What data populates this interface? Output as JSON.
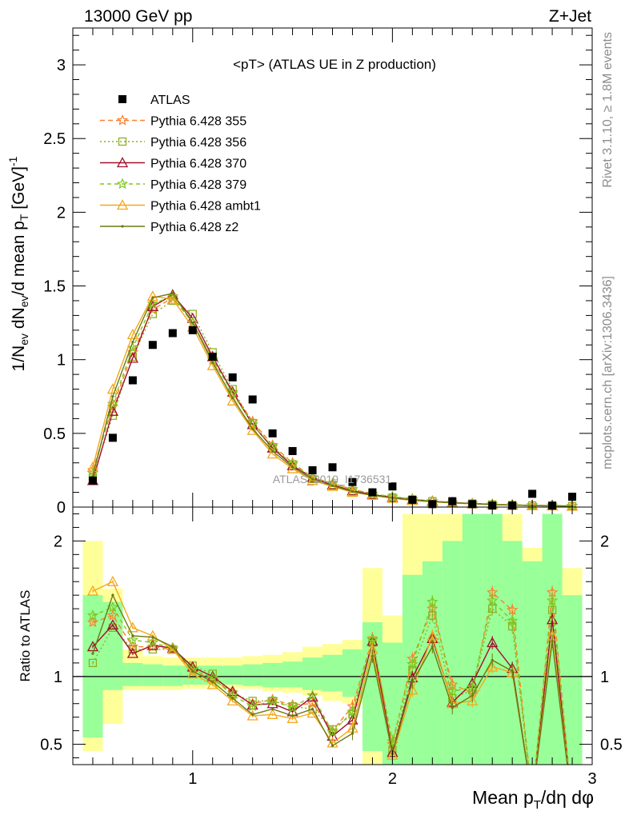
{
  "header": {
    "left": "13000 GeV pp",
    "right": "Z+Jet"
  },
  "side": {
    "rivet": "Rivet 3.1.10, ≥ 1.8M events",
    "mcplots": "mcplots.cern.ch [arXiv:1306.3436]"
  },
  "watermark": "ATLAS_2019_I1736531",
  "chart_data": [
    {
      "type": "scatter",
      "title": "<pT> (ATLAS UE in Z production)",
      "xlabel": "Mean p_T/dη dφ",
      "ylabel": "1/N_ev dN_ev/d mean p_T [GeV]^-1",
      "xlim": [
        0.4,
        3.0
      ],
      "ylim": [
        0,
        3.25
      ],
      "xticks": [
        1,
        2,
        3
      ],
      "yticks": [
        0,
        0.5,
        1,
        1.5,
        2,
        2.5,
        3
      ],
      "ytick_labels": [
        "0",
        "0.5",
        "1",
        "1.5",
        "2",
        "2.5",
        "3"
      ],
      "legend_position": "top-left",
      "x": [
        0.5,
        0.6,
        0.7,
        0.8,
        0.9,
        1.0,
        1.1,
        1.2,
        1.3,
        1.4,
        1.5,
        1.6,
        1.7,
        1.8,
        1.9,
        2.0,
        2.1,
        2.2,
        2.3,
        2.4,
        2.5,
        2.6,
        2.7,
        2.8,
        2.9
      ],
      "series": [
        {
          "name": "ATLAS",
          "color": "#000000",
          "marker": "square",
          "values": [
            0.18,
            0.47,
            0.86,
            1.1,
            1.18,
            1.2,
            1.02,
            0.88,
            0.73,
            0.5,
            0.38,
            0.25,
            0.27,
            0.17,
            0.1,
            0.14,
            0.05,
            0.02,
            0.04,
            0.02,
            0.01,
            0.01,
            0.09,
            0.01,
            0.07
          ]
        },
        {
          "name": "Pythia 6.428 355",
          "color": "#ff7f2a",
          "marker": "star",
          "dash": "6,4",
          "values": [
            0.25,
            0.68,
            1.05,
            1.34,
            1.42,
            1.25,
            1.0,
            0.78,
            0.58,
            0.42,
            0.3,
            0.2,
            0.16,
            0.12,
            0.09,
            0.07,
            0.055,
            0.04,
            0.03,
            0.025,
            0.02,
            0.015,
            0.012,
            0.01,
            0.008
          ]
        },
        {
          "name": "Pythia 6.428 356",
          "color": "#8fb020",
          "marker": "open-square",
          "dash": "2,3",
          "values": [
            0.2,
            0.62,
            1.02,
            1.31,
            1.4,
            1.31,
            1.05,
            0.8,
            0.57,
            0.4,
            0.29,
            0.19,
            0.15,
            0.11,
            0.085,
            0.065,
            0.05,
            0.04,
            0.03,
            0.024,
            0.018,
            0.014,
            0.011,
            0.009,
            0.007
          ]
        },
        {
          "name": "Pythia 6.428 370",
          "color": "#a0102a",
          "marker": "open-triangle",
          "dash": "",
          "values": [
            0.18,
            0.65,
            1.01,
            1.36,
            1.44,
            1.28,
            1.02,
            0.78,
            0.56,
            0.4,
            0.28,
            0.2,
            0.15,
            0.11,
            0.085,
            0.065,
            0.05,
            0.04,
            0.03,
            0.024,
            0.018,
            0.014,
            0.011,
            0.009,
            0.007
          ]
        },
        {
          "name": "Pythia 6.428 379",
          "color": "#7ec820",
          "marker": "star",
          "dash": "5,4",
          "values": [
            0.23,
            0.7,
            1.08,
            1.38,
            1.43,
            1.25,
            1.0,
            0.77,
            0.56,
            0.41,
            0.29,
            0.2,
            0.16,
            0.12,
            0.09,
            0.07,
            0.055,
            0.04,
            0.03,
            0.025,
            0.02,
            0.015,
            0.012,
            0.01,
            0.008
          ]
        },
        {
          "name": "Pythia 6.428 ambt1",
          "color": "#f2a81d",
          "marker": "open-triangle",
          "dash": "",
          "values": [
            0.27,
            0.8,
            1.17,
            1.43,
            1.41,
            1.22,
            0.96,
            0.72,
            0.52,
            0.36,
            0.26,
            0.18,
            0.14,
            0.1,
            0.08,
            0.06,
            0.045,
            0.035,
            0.028,
            0.022,
            0.017,
            0.013,
            0.01,
            0.008,
            0.006
          ]
        },
        {
          "name": "Pythia 6.428 z2",
          "color": "#6b7a12",
          "marker": "dot",
          "dash": "",
          "values": [
            0.21,
            0.75,
            1.12,
            1.42,
            1.45,
            1.25,
            0.98,
            0.74,
            0.53,
            0.38,
            0.27,
            0.19,
            0.145,
            0.105,
            0.08,
            0.062,
            0.048,
            0.037,
            0.029,
            0.023,
            0.017,
            0.013,
            0.01,
            0.008,
            0.006
          ]
        }
      ]
    },
    {
      "type": "line",
      "ylabel": "Ratio to ATLAS",
      "xlim": [
        0.4,
        3.0
      ],
      "ylim": [
        0.35,
        2.25
      ],
      "yticks": [
        0.5,
        1,
        2
      ],
      "ytick_labels": [
        "0.5",
        "1",
        "2"
      ],
      "x": [
        0.5,
        0.6,
        0.7,
        0.8,
        0.9,
        1.0,
        1.1,
        1.2,
        1.3,
        1.4,
        1.5,
        1.6,
        1.7,
        1.8,
        1.9,
        2.0,
        2.1,
        2.2,
        2.3,
        2.4,
        2.5,
        2.6,
        2.7,
        2.8,
        2.9
      ],
      "band_yellow": [
        [
          0.45,
          2.0
        ],
        [
          0.65,
          1.65
        ],
        [
          0.9,
          1.2
        ],
        [
          0.9,
          1.15
        ],
        [
          0.9,
          1.14
        ],
        [
          0.91,
          1.14
        ],
        [
          0.91,
          1.14
        ],
        [
          0.91,
          1.14
        ],
        [
          0.91,
          1.15
        ],
        [
          0.89,
          1.16
        ],
        [
          0.88,
          1.18
        ],
        [
          0.86,
          1.22
        ],
        [
          0.82,
          1.24
        ],
        [
          0.8,
          1.27
        ],
        [
          0.35,
          1.8
        ],
        [
          0.35,
          1.45
        ],
        [
          0.35,
          2.2
        ],
        [
          0.35,
          2.2
        ],
        [
          0.45,
          2.2
        ],
        [
          0.35,
          2.2
        ],
        [
          0.35,
          2.2
        ],
        [
          0.35,
          2.2
        ],
        [
          0.35,
          1.95
        ],
        [
          0.35,
          2.2
        ],
        [
          0.35,
          1.8
        ]
      ],
      "band_green": [
        [
          0.55,
          1.6
        ],
        [
          0.9,
          1.55
        ],
        [
          0.93,
          1.1
        ],
        [
          0.93,
          1.09
        ],
        [
          0.93,
          1.08
        ],
        [
          0.94,
          1.08
        ],
        [
          0.94,
          1.08
        ],
        [
          0.94,
          1.08
        ],
        [
          0.93,
          1.09
        ],
        [
          0.92,
          1.1
        ],
        [
          0.92,
          1.11
        ],
        [
          0.9,
          1.14
        ],
        [
          0.89,
          1.16
        ],
        [
          0.85,
          1.2
        ],
        [
          0.45,
          1.4
        ],
        [
          0.35,
          1.25
        ],
        [
          0.35,
          1.75
        ],
        [
          0.35,
          1.85
        ],
        [
          0.35,
          2.0
        ],
        [
          0.35,
          2.2
        ],
        [
          0.35,
          2.2
        ],
        [
          0.35,
          2.0
        ],
        [
          0.35,
          1.85
        ],
        [
          0.35,
          2.2
        ],
        [
          0.35,
          1.6
        ]
      ],
      "series": [
        {
          "name": "Pythia 6.428 355",
          "color": "#ff7f2a",
          "values": [
            1.4,
            1.45,
            1.22,
            1.22,
            1.2,
            1.04,
            0.98,
            0.88,
            0.8,
            0.83,
            0.79,
            0.8,
            0.6,
            0.78,
            1.28,
            0.5,
            1.13,
            1.5,
            0.94,
            0.88,
            1.62,
            1.49,
            0.1,
            1.62,
            0.05
          ]
        },
        {
          "name": "Pythia 6.428 356",
          "color": "#8fb020",
          "values": [
            1.1,
            1.36,
            1.2,
            1.2,
            1.2,
            1.08,
            1.02,
            0.87,
            0.82,
            0.82,
            0.78,
            0.76,
            0.61,
            0.72,
            1.25,
            0.46,
            1.05,
            1.45,
            0.84,
            0.9,
            1.5,
            1.37,
            0.1,
            1.49,
            0.05
          ]
        },
        {
          "name": "Pythia 6.428 370",
          "color": "#a0102a",
          "values": [
            1.22,
            1.38,
            1.17,
            1.23,
            1.21,
            1.07,
            1.0,
            0.89,
            0.79,
            0.8,
            0.74,
            0.85,
            0.56,
            0.68,
            1.26,
            0.44,
            0.99,
            1.28,
            0.81,
            0.95,
            1.25,
            1.06,
            0.1,
            1.42,
            0.05
          ]
        },
        {
          "name": "Pythia 6.428 379",
          "color": "#7ec820",
          "values": [
            1.45,
            1.51,
            1.27,
            1.25,
            1.21,
            1.05,
            0.99,
            0.86,
            0.78,
            0.82,
            0.77,
            0.86,
            0.59,
            0.74,
            1.27,
            0.52,
            1.09,
            1.55,
            0.89,
            0.92,
            1.56,
            1.41,
            0.1,
            1.56,
            0.05
          ]
        },
        {
          "name": "Pythia 6.428 ambt1",
          "color": "#f2a81d",
          "values": [
            1.63,
            1.7,
            1.36,
            1.3,
            1.2,
            1.02,
            0.94,
            0.82,
            0.71,
            0.72,
            0.69,
            0.73,
            0.51,
            0.62,
            1.2,
            0.42,
            0.9,
            1.3,
            0.8,
            0.82,
            1.07,
            1.03,
            0.1,
            1.3,
            0.05
          ]
        },
        {
          "name": "Pythia 6.428 z2",
          "color": "#6b7a12",
          "values": [
            1.17,
            1.6,
            1.3,
            1.29,
            1.22,
            1.04,
            0.96,
            0.84,
            0.72,
            0.76,
            0.71,
            0.76,
            0.49,
            0.58,
            1.15,
            0.43,
            0.96,
            1.22,
            0.77,
            0.86,
            1.12,
            1.04,
            0.1,
            1.26,
            0.05
          ]
        }
      ]
    }
  ]
}
